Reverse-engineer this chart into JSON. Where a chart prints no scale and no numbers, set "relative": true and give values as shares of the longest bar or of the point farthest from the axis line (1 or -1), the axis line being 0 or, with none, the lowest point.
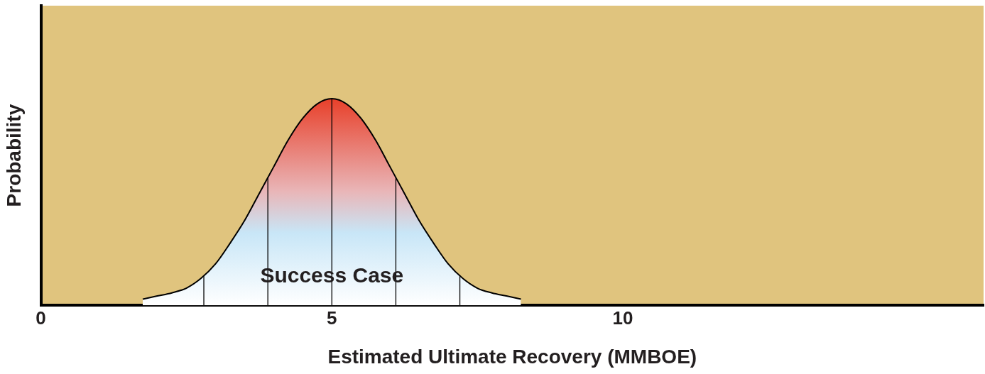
{
  "chart_data": {
    "type": "area",
    "relative": true,
    "xlabel": "Estimated Ultimate Recovery (MMBOE)",
    "ylabel": "Probability",
    "x": [
      1.75,
      2.0,
      2.25,
      2.5,
      2.75,
      3.0,
      3.25,
      3.5,
      3.75,
      4.0,
      4.25,
      4.5,
      4.75,
      5.0,
      5.25,
      5.5,
      5.75,
      6.0,
      6.25,
      6.5,
      6.75,
      7.0,
      7.25,
      7.5,
      7.75,
      8.0,
      8.25
    ],
    "series": [
      {
        "color": "#e8402a",
        "values": [
          0.03,
          0.045,
          0.06,
          0.083,
          0.13,
          0.2,
          0.3,
          0.41,
          0.54,
          0.67,
          0.8,
          0.905,
          0.975,
          1,
          0.975,
          0.905,
          0.8,
          0.67,
          0.54,
          0.41,
          0.3,
          0.2,
          0.13,
          0.083,
          0.06,
          0.045,
          0.03
        ]
      }
    ],
    "xlim": [
      0,
      16.2
    ],
    "xticks": [
      0,
      5,
      10
    ],
    "tick_labels": "x",
    "grid": false,
    "legend": false,
    "ref_lines": [
      {
        "axis": "x",
        "value": 2.8,
        "color": "#000000"
      },
      {
        "axis": "x",
        "value": 3.9,
        "color": "#000000"
      },
      {
        "axis": "x",
        "value": 5,
        "color": "#000000"
      },
      {
        "axis": "x",
        "value": 6.1,
        "color": "#000000"
      },
      {
        "axis": "x",
        "value": 7.2,
        "color": "#000000"
      }
    ],
    "annotations": [
      {
        "text": "Success Case",
        "x": 5,
        "y": 0.14
      }
    ]
  }
}
